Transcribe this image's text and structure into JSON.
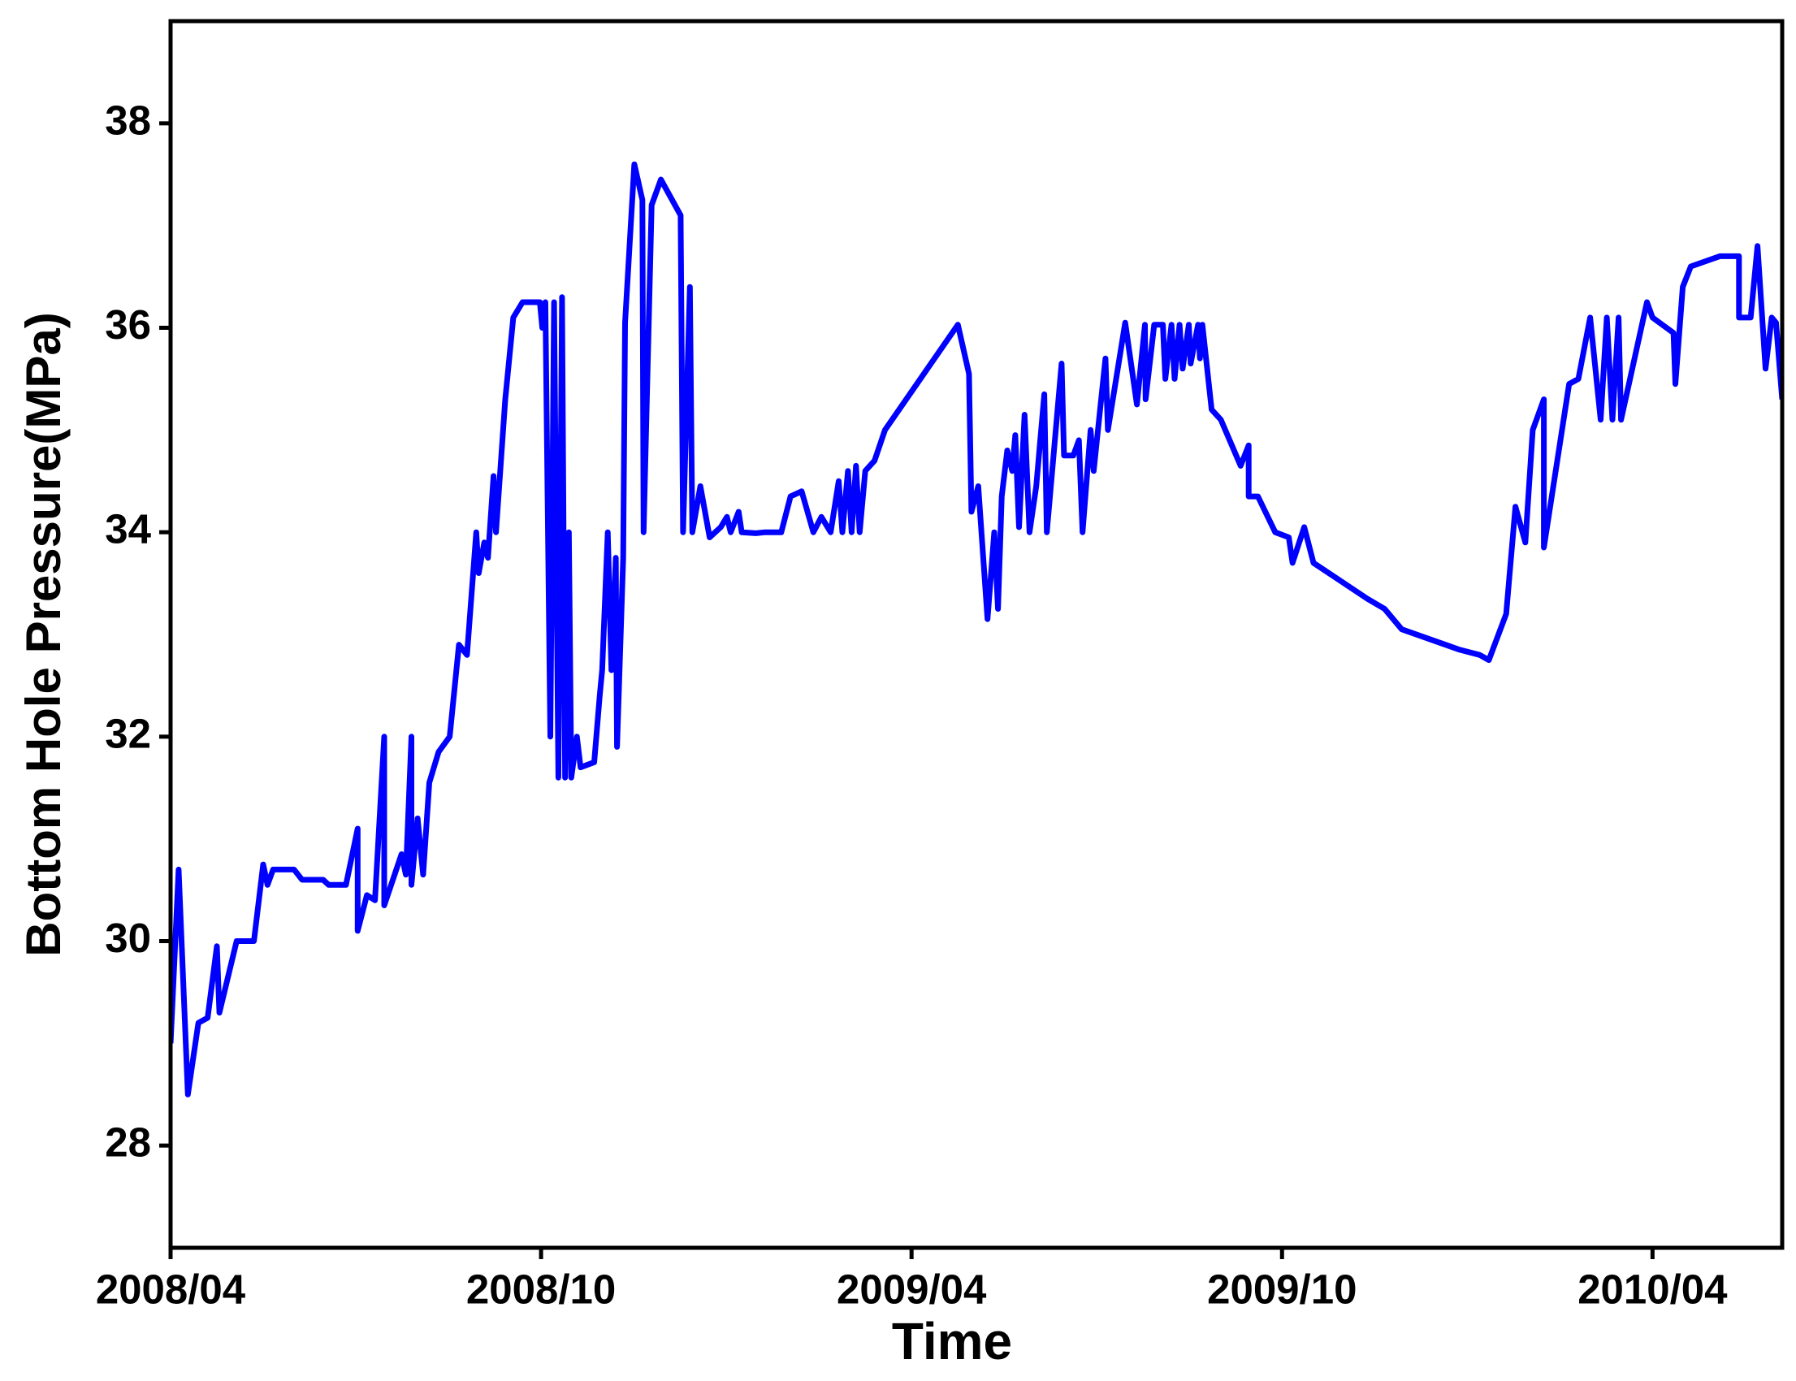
{
  "chart_data": {
    "type": "line",
    "xlabel": "Time",
    "ylabel": "Bottom Hole Pressure(MPa)",
    "color": "#0000ff",
    "xlim": [
      0,
      26.1
    ],
    "ylim": [
      27,
      39
    ],
    "xticks": [
      {
        "value": 0,
        "label": "2008/04"
      },
      {
        "value": 6,
        "label": "2008/10"
      },
      {
        "value": 12,
        "label": "2009/04"
      },
      {
        "value": 18,
        "label": "2009/10"
      },
      {
        "value": 24,
        "label": "2010/04"
      }
    ],
    "yticks": [
      28,
      30,
      32,
      34,
      36,
      38
    ],
    "x": [
      0,
      0.13,
      0.28,
      0.45,
      0.6,
      0.75,
      0.79,
      1.07,
      1.35,
      1.5,
      1.57,
      1.66,
      2.0,
      2.13,
      2.47,
      2.56,
      2.84,
      3.03,
      3.03,
      3.18,
      3.31,
      3.46,
      3.46,
      3.74,
      3.81,
      3.9,
      3.9,
      4.0,
      4.09,
      4.19,
      4.34,
      4.52,
      4.67,
      4.8,
      4.95,
      4.99,
      5.08,
      5.14,
      5.23,
      5.27,
      5.42,
      5.55,
      5.7,
      5.98,
      6.02,
      6.07,
      6.15,
      6.21,
      6.28,
      6.34,
      6.39,
      6.45,
      6.49,
      6.58,
      6.64,
      6.86,
      6.95,
      6.99,
      7.08,
      7.14,
      7.21,
      7.23,
      7.33,
      7.36,
      7.51,
      7.64,
      7.66,
      7.79,
      7.94,
      8.26,
      8.3,
      8.41,
      8.45,
      8.58,
      8.73,
      8.91,
      9.01,
      9.07,
      9.2,
      9.25,
      9.48,
      9.63,
      9.89,
      10.04,
      10.22,
      10.41,
      10.54,
      10.69,
      10.82,
      10.88,
      10.97,
      11.03,
      11.1,
      11.16,
      11.25,
      11.4,
      11.57,
      12.75,
      12.93,
      12.97,
      13.08,
      13.23,
      13.34,
      13.4,
      13.46,
      13.55,
      13.63,
      13.68,
      13.74,
      13.83,
      13.91,
      14.02,
      14.15,
      14.19,
      14.43,
      14.47,
      14.62,
      14.71,
      14.77,
      14.9,
      14.95,
      15.14,
      15.18,
      15.46,
      15.65,
      15.78,
      15.79,
      15.93,
      16.07,
      16.11,
      16.21,
      16.26,
      16.34,
      16.39,
      16.49,
      16.52,
      16.64,
      16.67,
      16.71,
      16.86,
      17.01,
      17.33,
      17.46,
      17.46,
      17.61,
      17.89,
      18.11,
      18.17,
      18.36,
      18.51,
      19.38,
      19.66,
      19.94,
      20.88,
      21.2,
      21.35,
      21.63,
      21.78,
      21.94,
      22.06,
      22.24,
      22.24,
      22.65,
      22.8,
      22.99,
      23.16,
      23.26,
      23.35,
      23.45,
      23.49,
      23.91,
      24.0,
      24.34,
      24.37,
      24.49,
      24.62,
      25.09,
      25.4,
      25.4,
      25.59,
      25.7,
      25.83,
      25.93,
      26.0,
      26.1
    ],
    "values": [
      29.0,
      30.7,
      28.5,
      29.2,
      29.25,
      29.95,
      29.3,
      30.0,
      30.0,
      30.75,
      30.55,
      30.7,
      30.7,
      30.6,
      30.6,
      30.55,
      30.55,
      31.1,
      30.1,
      30.45,
      30.4,
      32.0,
      30.35,
      30.85,
      30.65,
      32.0,
      30.55,
      31.2,
      30.65,
      31.55,
      31.85,
      32.0,
      32.9,
      32.8,
      34.0,
      33.6,
      33.9,
      33.75,
      34.55,
      34.0,
      35.3,
      36.1,
      36.25,
      36.25,
      36.0,
      36.25,
      32.0,
      36.25,
      31.6,
      36.3,
      31.6,
      34.0,
      31.6,
      32.0,
      31.7,
      31.75,
      32.4,
      32.65,
      34.0,
      32.65,
      33.75,
      31.9,
      33.75,
      36.05,
      37.6,
      37.25,
      34.0,
      37.2,
      37.45,
      37.1,
      34.0,
      36.4,
      34.0,
      34.45,
      33.95,
      34.05,
      34.15,
      34.0,
      34.2,
      34.0,
      33.99,
      34.0,
      34.0,
      34.35,
      34.4,
      34.0,
      34.15,
      34.0,
      34.5,
      34.0,
      34.6,
      34.0,
      34.65,
      34.0,
      34.6,
      34.7,
      35.0,
      36.03,
      35.55,
      34.2,
      34.45,
      33.15,
      34.0,
      33.25,
      34.35,
      34.8,
      34.6,
      34.95,
      34.05,
      35.15,
      34.0,
      34.45,
      35.35,
      34.0,
      35.65,
      34.75,
      34.75,
      34.9,
      34.0,
      35.0,
      34.6,
      35.7,
      35.0,
      36.05,
      35.25,
      36.03,
      35.3,
      36.03,
      36.03,
      35.5,
      36.03,
      35.5,
      36.03,
      35.6,
      36.03,
      35.65,
      36.03,
      35.7,
      36.03,
      35.2,
      35.1,
      34.65,
      34.85,
      34.35,
      34.35,
      34.0,
      33.95,
      33.7,
      34.05,
      33.7,
      33.35,
      33.25,
      33.05,
      32.85,
      32.8,
      32.75,
      33.2,
      34.25,
      33.9,
      35.0,
      35.3,
      33.85,
      35.45,
      35.5,
      36.1,
      35.1,
      36.1,
      35.1,
      36.1,
      35.1,
      36.25,
      36.1,
      35.95,
      35.45,
      36.4,
      36.6,
      36.7,
      36.7,
      36.1,
      36.1,
      36.8,
      35.6,
      36.1,
      36.05,
      35.3
    ]
  }
}
